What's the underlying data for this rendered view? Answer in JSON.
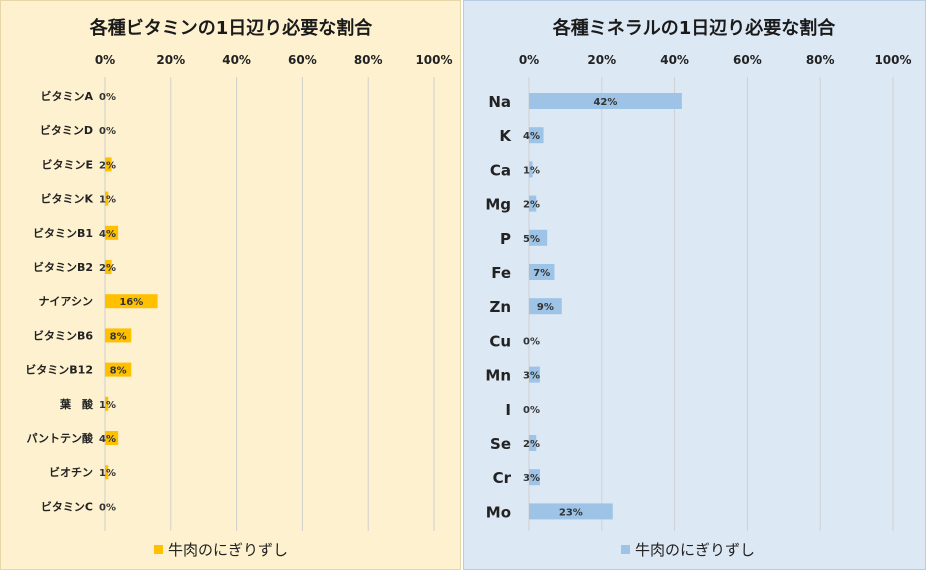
{
  "chart_data": [
    {
      "type": "bar",
      "orientation": "horizontal",
      "title": "各種ビタミンの1日辺り必要な割合",
      "categories": [
        "ビタミンA",
        "ビタミンD",
        "ビタミンE",
        "ビタミンK",
        "ビタミンB1",
        "ビタミンB2",
        "ナイアシン",
        "ビタミンB6",
        "ビタミンB12",
        "葉　酸",
        "パントテン酸",
        "ビオチン",
        "ビタミンC"
      ],
      "series": [
        {
          "name": "牛肉のにぎりずし",
          "values": [
            0,
            0,
            2,
            1,
            4,
            2,
            16,
            8,
            8,
            1,
            4,
            1,
            0
          ]
        }
      ],
      "value_labels": [
        "0%",
        "0%",
        "2%",
        "1%",
        "4%",
        "2%",
        "16%",
        "8%",
        "8%",
        "1%",
        "4%",
        "1%",
        "0%"
      ],
      "xlim": [
        0,
        100
      ],
      "x_ticks": [
        "0%",
        "20%",
        "40%",
        "60%",
        "80%",
        "100%"
      ],
      "axis_position": "top",
      "grid": true,
      "legend_position": "bottom",
      "color": "#ffc000"
    },
    {
      "type": "bar",
      "orientation": "horizontal",
      "title": "各種ミネラルの1日辺り必要な割合",
      "categories": [
        "Na",
        "K",
        "Ca",
        "Mg",
        "P",
        "Fe",
        "Zn",
        "Cu",
        "Mn",
        "I",
        "Se",
        "Cr",
        "Mo"
      ],
      "series": [
        {
          "name": "牛肉のにぎりずし",
          "values": [
            42,
            4,
            1,
            2,
            5,
            7,
            9,
            0,
            3,
            0,
            2,
            3,
            23
          ]
        }
      ],
      "value_labels": [
        "42%",
        "4%",
        "1%",
        "2%",
        "5%",
        "7%",
        "9%",
        "0%",
        "3%",
        "0%",
        "2%",
        "3%",
        "23%"
      ],
      "xlim": [
        0,
        100
      ],
      "x_ticks": [
        "0%",
        "20%",
        "40%",
        "60%",
        "80%",
        "100%"
      ],
      "axis_position": "top",
      "grid": true,
      "legend_position": "bottom",
      "color": "#9dc3e6"
    }
  ]
}
